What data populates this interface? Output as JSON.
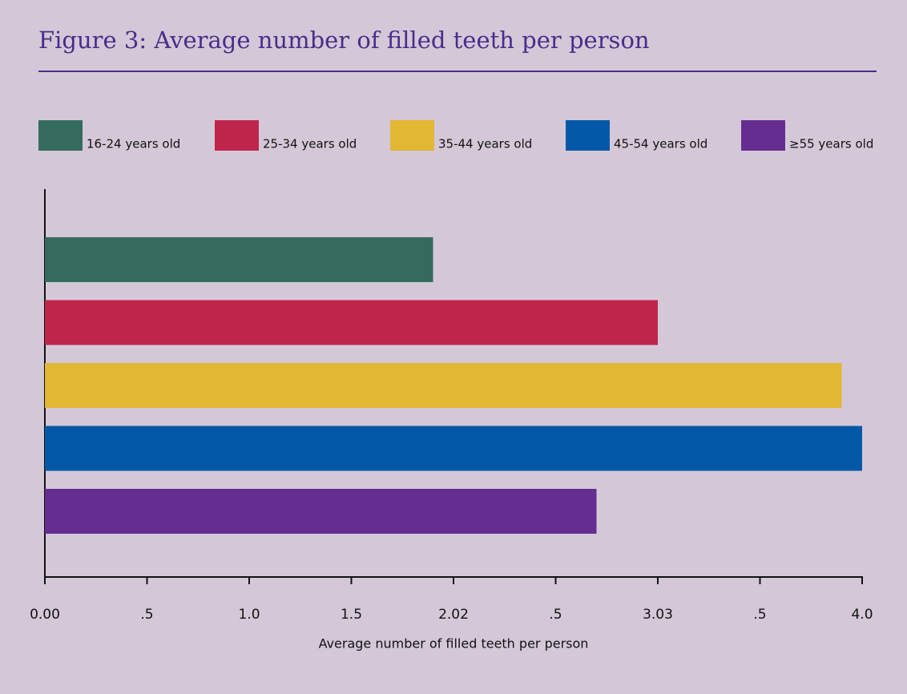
{
  "chart_data": {
    "type": "bar",
    "orientation": "horizontal",
    "title": "Figure 3: Average number of filled teeth per person",
    "xlabel": "Average number of filled teeth per person",
    "series": [
      {
        "name": "16-24 years old",
        "color": "#356b5e",
        "values": [
          1.9
        ]
      },
      {
        "name": "25-34 years old",
        "color": "#bf254b",
        "values": [
          3.0
        ]
      },
      {
        "name": "35-44 years old",
        "color": "#e2b733",
        "values": [
          3.9
        ]
      },
      {
        "name": "45-54 years old",
        "color": "#0058a7",
        "values": [
          4.0
        ]
      },
      {
        "name": "≥55 years old",
        "color": "#652d90",
        "values": [
          2.7
        ]
      }
    ],
    "xlim": [
      0,
      4
    ],
    "xticks": [
      {
        "value": 0,
        "label": "0.00"
      },
      {
        "value": 0.5,
        "label": ".5"
      },
      {
        "value": 1,
        "label": "1.0"
      },
      1.5,
      {
        "value": 2,
        "label": "2.02"
      },
      {
        "value": 2.5,
        "label": ".5"
      },
      {
        "value": 3,
        "label": "3.03"
      },
      {
        "value": 3.5,
        "label": ".5"
      },
      {
        "value": 4,
        "label": "4.0"
      }
    ],
    "legend": "top"
  }
}
